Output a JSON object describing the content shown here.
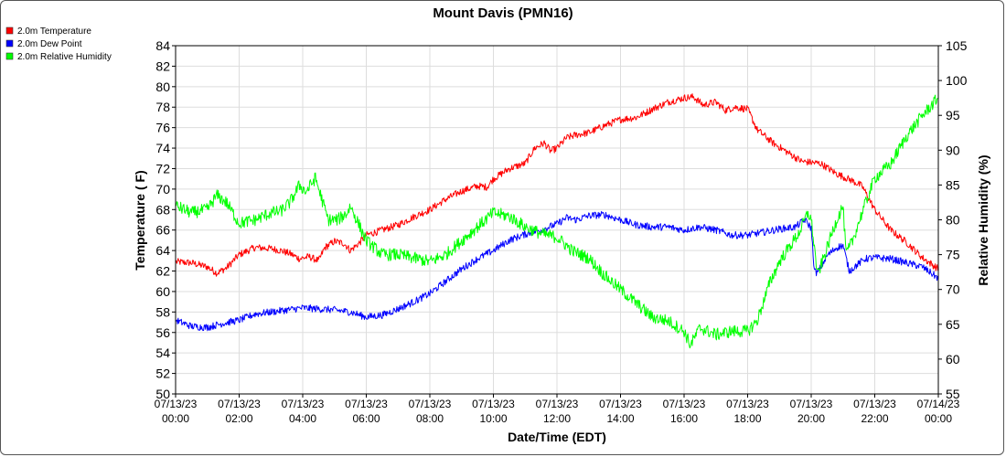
{
  "chart_data": {
    "type": "line",
    "title": "Mount Davis (PMN16)",
    "xlabel": "Date/Time (EDT)",
    "ylabel_left": "Temperature ( F)",
    "ylabel_right": "Relative Humidity (%)",
    "ylim_left": [
      50,
      84
    ],
    "ylim_right": [
      55,
      105
    ],
    "xlim_hours": [
      0,
      24
    ],
    "yticks_left": [
      "50",
      "52",
      "54",
      "56",
      "58",
      "60",
      "62",
      "64",
      "66",
      "68",
      "70",
      "72",
      "74",
      "76",
      "78",
      "80",
      "82",
      "84"
    ],
    "yticks_right": [
      "55",
      "60",
      "65",
      "70",
      "75",
      "80",
      "85",
      "90",
      "95",
      "100",
      "105"
    ],
    "xticks": [
      {
        "date": "07/13/23",
        "time": "00:00"
      },
      {
        "date": "07/13/23",
        "time": "02:00"
      },
      {
        "date": "07/13/23",
        "time": "04:00"
      },
      {
        "date": "07/13/23",
        "time": "06:00"
      },
      {
        "date": "07/13/23",
        "time": "08:00"
      },
      {
        "date": "07/13/23",
        "time": "10:00"
      },
      {
        "date": "07/13/23",
        "time": "12:00"
      },
      {
        "date": "07/13/23",
        "time": "14:00"
      },
      {
        "date": "07/13/23",
        "time": "16:00"
      },
      {
        "date": "07/13/23",
        "time": "18:00"
      },
      {
        "date": "07/13/23",
        "time": "20:00"
      },
      {
        "date": "07/13/23",
        "time": "22:00"
      },
      {
        "date": "07/14/23",
        "time": "00:00"
      }
    ],
    "grid": true,
    "legend_position": "top-left",
    "series": [
      {
        "name": "2.0m Temperature",
        "color": "#ff0000",
        "axis": "left",
        "points": [
          [
            0,
            62.9
          ],
          [
            0.5,
            62.8
          ],
          [
            1,
            62.4
          ],
          [
            1.3,
            61.8
          ],
          [
            1.6,
            62.3
          ],
          [
            2,
            63.6
          ],
          [
            2.5,
            64.3
          ],
          [
            3,
            64.2
          ],
          [
            3.3,
            64.0
          ],
          [
            3.6,
            63.7
          ],
          [
            3.9,
            63.2
          ],
          [
            4.2,
            63.4
          ],
          [
            4.5,
            63.0
          ],
          [
            4.7,
            64.3
          ],
          [
            5,
            64.9
          ],
          [
            5.3,
            64.7
          ],
          [
            5.5,
            64.0
          ],
          [
            5.8,
            64.8
          ],
          [
            6,
            65.5
          ],
          [
            6.5,
            66.0
          ],
          [
            7,
            66.5
          ],
          [
            7.5,
            67.3
          ],
          [
            8,
            68.0
          ],
          [
            8.5,
            69.0
          ],
          [
            9,
            69.8
          ],
          [
            9.5,
            70.3
          ],
          [
            9.8,
            70.2
          ],
          [
            10,
            71.0
          ],
          [
            10.5,
            72.0
          ],
          [
            11,
            72.5
          ],
          [
            11.3,
            74.0
          ],
          [
            11.6,
            74.5
          ],
          [
            11.8,
            73.7
          ],
          [
            12,
            74.0
          ],
          [
            12.3,
            75.0
          ],
          [
            12.6,
            75.3
          ],
          [
            13,
            75.5
          ],
          [
            13.5,
            76.2
          ],
          [
            14,
            76.8
          ],
          [
            14.5,
            77.0
          ],
          [
            15,
            77.8
          ],
          [
            15.5,
            78.5
          ],
          [
            16,
            78.9
          ],
          [
            16.3,
            79.0
          ],
          [
            16.6,
            78.2
          ],
          [
            17,
            78.5
          ],
          [
            17.3,
            77.7
          ],
          [
            17.6,
            78.0
          ],
          [
            18,
            77.8
          ],
          [
            18.3,
            75.8
          ],
          [
            18.8,
            74.5
          ],
          [
            19.3,
            73.5
          ],
          [
            19.7,
            72.7
          ],
          [
            20,
            72.6
          ],
          [
            20.3,
            72.5
          ],
          [
            20.8,
            71.5
          ],
          [
            21.3,
            70.8
          ],
          [
            21.6,
            70.3
          ],
          [
            22,
            68.0
          ],
          [
            22.5,
            66.0
          ],
          [
            23,
            64.8
          ],
          [
            23.5,
            63.3
          ],
          [
            24,
            62.2
          ]
        ]
      },
      {
        "name": "2.0m Dew Point",
        "color": "#0000ff",
        "axis": "left",
        "points": [
          [
            0,
            57.2
          ],
          [
            0.5,
            56.6
          ],
          [
            1,
            56.5
          ],
          [
            1.5,
            56.9
          ],
          [
            2,
            57.2
          ],
          [
            2.5,
            57.8
          ],
          [
            3,
            58.0
          ],
          [
            3.5,
            58.2
          ],
          [
            4,
            58.4
          ],
          [
            4.5,
            58.3
          ],
          [
            5,
            58.2
          ],
          [
            5.5,
            58.0
          ],
          [
            6,
            57.5
          ],
          [
            6.5,
            57.7
          ],
          [
            7,
            58.3
          ],
          [
            7.5,
            59.0
          ],
          [
            8,
            59.8
          ],
          [
            8.5,
            61.0
          ],
          [
            9,
            62.2
          ],
          [
            9.5,
            63.2
          ],
          [
            10,
            64.0
          ],
          [
            10.5,
            65.0
          ],
          [
            11,
            65.6
          ],
          [
            11.5,
            66.0
          ],
          [
            12,
            66.6
          ],
          [
            12.3,
            67.2
          ],
          [
            12.6,
            67.0
          ],
          [
            13,
            67.4
          ],
          [
            13.5,
            67.5
          ],
          [
            14,
            67.0
          ],
          [
            14.5,
            66.5
          ],
          [
            15,
            66.3
          ],
          [
            15.5,
            66.3
          ],
          [
            16,
            66.0
          ],
          [
            16.5,
            66.3
          ],
          [
            17,
            66.0
          ],
          [
            17.5,
            65.5
          ],
          [
            18,
            65.5
          ],
          [
            18.5,
            65.8
          ],
          [
            19,
            66.1
          ],
          [
            19.5,
            66.3
          ],
          [
            19.8,
            67.0
          ],
          [
            20,
            66.2
          ],
          [
            20.1,
            62.0
          ],
          [
            20.2,
            61.8
          ],
          [
            20.5,
            63.5
          ],
          [
            20.8,
            64.3
          ],
          [
            21,
            64.5
          ],
          [
            21.2,
            62.0
          ],
          [
            21.4,
            62.5
          ],
          [
            21.7,
            63.2
          ],
          [
            22,
            63.3
          ],
          [
            22.5,
            63.2
          ],
          [
            23,
            62.8
          ],
          [
            23.5,
            62.4
          ],
          [
            24,
            61.3
          ]
        ]
      },
      {
        "name": "2.0m Relative Humidity",
        "color": "#00ff00",
        "axis": "right",
        "points": [
          [
            0,
            82
          ],
          [
            0.5,
            81
          ],
          [
            1,
            81.5
          ],
          [
            1.3,
            83.5
          ],
          [
            1.6,
            82.5
          ],
          [
            2,
            79.5
          ],
          [
            2.5,
            80
          ],
          [
            3,
            81
          ],
          [
            3.3,
            81.2
          ],
          [
            3.6,
            82.5
          ],
          [
            3.9,
            85
          ],
          [
            4.1,
            84
          ],
          [
            4.4,
            86
          ],
          [
            4.6,
            83
          ],
          [
            4.8,
            80
          ],
          [
            5.1,
            80
          ],
          [
            5.4,
            81
          ],
          [
            5.5,
            82
          ],
          [
            5.8,
            79
          ],
          [
            6,
            77
          ],
          [
            6.5,
            75
          ],
          [
            7,
            75
          ],
          [
            7.5,
            74.5
          ],
          [
            8,
            74
          ],
          [
            8.5,
            75
          ],
          [
            9,
            77
          ],
          [
            9.5,
            79
          ],
          [
            10,
            81
          ],
          [
            10.5,
            80.5
          ],
          [
            11,
            79
          ],
          [
            11.5,
            78
          ],
          [
            12,
            77.5
          ],
          [
            12.5,
            75.5
          ],
          [
            13,
            74.5
          ],
          [
            13.5,
            72
          ],
          [
            14,
            70
          ],
          [
            14.5,
            68
          ],
          [
            15,
            66
          ],
          [
            15.5,
            65.5
          ],
          [
            16,
            64
          ],
          [
            16.2,
            62
          ],
          [
            16.5,
            64.5
          ],
          [
            17,
            63.5
          ],
          [
            17.5,
            64
          ],
          [
            18,
            64
          ],
          [
            18.3,
            65.5
          ],
          [
            18.7,
            71
          ],
          [
            19,
            74
          ],
          [
            19.3,
            76
          ],
          [
            19.6,
            78
          ],
          [
            19.9,
            81
          ],
          [
            20,
            80
          ],
          [
            20.2,
            72
          ],
          [
            20.5,
            76
          ],
          [
            20.8,
            80
          ],
          [
            21,
            82
          ],
          [
            21.1,
            75
          ],
          [
            21.3,
            77
          ],
          [
            21.6,
            81
          ],
          [
            22,
            86
          ],
          [
            22.5,
            88
          ],
          [
            23,
            92
          ],
          [
            23.5,
            95
          ],
          [
            24,
            97.5
          ]
        ]
      }
    ]
  }
}
